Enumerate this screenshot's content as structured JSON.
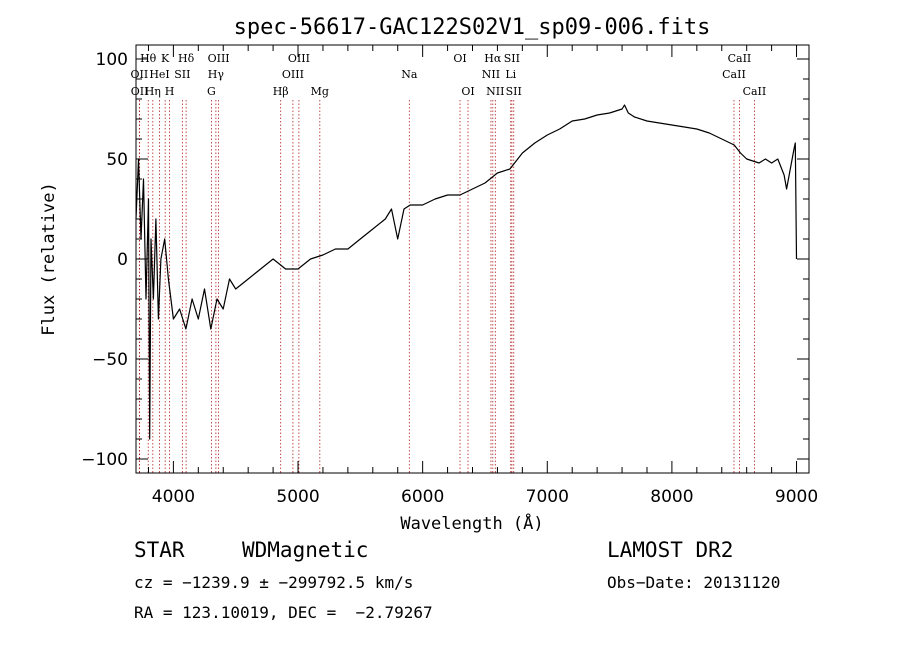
{
  "chart_data": {
    "type": "line",
    "title": "spec-56617-GAC122S02V1_sp09-006.fits",
    "xlabel": "Wavelength (Å)",
    "ylabel": "Flux (relative)",
    "xlim": [
      3700,
      9100
    ],
    "ylim": [
      -107,
      107
    ],
    "xticks": [
      4000,
      5000,
      6000,
      7000,
      8000,
      9000
    ],
    "yticks": [
      -100,
      -50,
      0,
      50,
      100
    ],
    "series": [
      {
        "x": [
          3700,
          3720,
          3740,
          3760,
          3780,
          3800,
          3810,
          3820,
          3840,
          3860,
          3880,
          3900,
          3930,
          3960,
          4000,
          4050,
          4100,
          4150,
          4200,
          4250,
          4300,
          4350,
          4400,
          4450,
          4500,
          4600,
          4700,
          4800,
          4900,
          5000,
          5100,
          5200,
          5300,
          5400,
          5500,
          5600,
          5700,
          5750,
          5800,
          5850,
          5900,
          6000,
          6100,
          6200,
          6300,
          6400,
          6500,
          6600,
          6700,
          6800,
          6900,
          7000,
          7100,
          7200,
          7300,
          7400,
          7500,
          7600,
          7620,
          7650,
          7700,
          7800,
          7900,
          8000,
          8100,
          8200,
          8300,
          8400,
          8500,
          8550,
          8600,
          8650,
          8700,
          8750,
          8800,
          8850,
          8900,
          8920,
          8950,
          8980,
          8990,
          9000
        ],
        "y": [
          20,
          50,
          10,
          40,
          -20,
          30,
          -90,
          10,
          -20,
          20,
          -30,
          0,
          10,
          -10,
          -30,
          -25,
          -35,
          -20,
          -30,
          -15,
          -35,
          -20,
          -25,
          -10,
          -15,
          -10,
          -5,
          0,
          -5,
          -5,
          0,
          2,
          5,
          5,
          10,
          15,
          20,
          25,
          10,
          25,
          27,
          27,
          30,
          32,
          32,
          35,
          38,
          43,
          45,
          53,
          58,
          62,
          65,
          69,
          70,
          72,
          73,
          75,
          77,
          73,
          71,
          69,
          68,
          67,
          66,
          65,
          63,
          60,
          57,
          53,
          50,
          49,
          48,
          50,
          48,
          50,
          42,
          35,
          45,
          55,
          58,
          0
        ]
      }
    ],
    "line_markers": [
      {
        "label": "Hθ",
        "x": 3798,
        "row": 0
      },
      {
        "label": "OII",
        "x": 3727,
        "row": 1
      },
      {
        "label": "OII",
        "x": 3729,
        "row": 2
      },
      {
        "label": "Hη",
        "x": 3835,
        "row": 2
      },
      {
        "label": "K",
        "x": 3934,
        "row": 0
      },
      {
        "label": "HeI",
        "x": 3889,
        "row": 1
      },
      {
        "label": "H",
        "x": 3969,
        "row": 2
      },
      {
        "label": "SII",
        "x": 4072,
        "row": 1
      },
      {
        "label": "Hδ",
        "x": 4102,
        "row": 0
      },
      {
        "label": "OIII",
        "x": 4363,
        "row": 0
      },
      {
        "label": "Hγ",
        "x": 4341,
        "row": 1
      },
      {
        "label": "G",
        "x": 4305,
        "row": 2
      },
      {
        "label": "Hβ",
        "x": 4861,
        "row": 2
      },
      {
        "label": "OIII",
        "x": 4959,
        "row": 1
      },
      {
        "label": "OIII",
        "x": 5007,
        "row": 0
      },
      {
        "label": "Mg",
        "x": 5175,
        "row": 2
      },
      {
        "label": "Na",
        "x": 5893,
        "row": 1
      },
      {
        "label": "OI",
        "x": 6300,
        "row": 0
      },
      {
        "label": "OI",
        "x": 6364,
        "row": 2
      },
      {
        "label": "NII",
        "x": 6548,
        "row": 1
      },
      {
        "label": "Hα",
        "x": 6563,
        "row": 0
      },
      {
        "label": "NII",
        "x": 6583,
        "row": 2
      },
      {
        "label": "Li",
        "x": 6707,
        "row": 1
      },
      {
        "label": "SII",
        "x": 6716,
        "row": 0
      },
      {
        "label": "SII",
        "x": 6731,
        "row": 2
      },
      {
        "label": "CaII",
        "x": 8498,
        "row": 1
      },
      {
        "label": "CaII",
        "x": 8542,
        "row": 0
      },
      {
        "label": "CaII",
        "x": 8662,
        "row": 2
      }
    ],
    "colors": {
      "spectrum": "#000000",
      "line_marker": "#b22222",
      "axes": "#000000",
      "background": "#ffffff"
    }
  },
  "info": {
    "class_label": "STAR",
    "subclass_label": "WDMagnetic",
    "survey_label": "LAMOST DR2",
    "cz_text": "cz = −1239.9 ± −299792.5 km/s",
    "obs_date_text": "Obs−Date: 20131120",
    "coords_text": "RA = 123.10019, DEC =  −2.79267"
  }
}
